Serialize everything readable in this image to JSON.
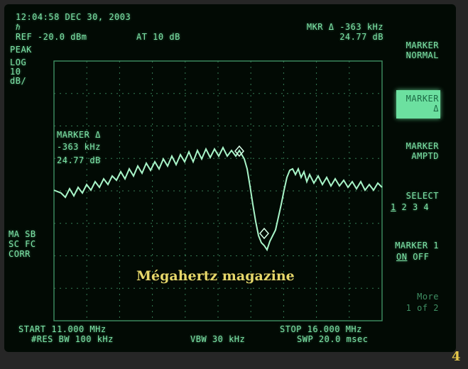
{
  "header": {
    "timestamp": "12:04:58 DEC 30, 2003",
    "ref_level": "REF -20.0 dBm",
    "attenuation": "AT 10 dB",
    "marker_readout_freq": "MKR Δ -363 kHz",
    "marker_readout_level": "24.77 dB"
  },
  "left_panel": {
    "detector": "PEAK",
    "scale_line1": "LOG",
    "scale_line2": "10",
    "scale_line3": "dB/",
    "status_line1": "MA SB",
    "status_line2": "SC FC",
    "status_line3": "CORR"
  },
  "marker_annotation": {
    "line1": "MARKER Δ",
    "line2": "-363 kHz",
    "line3": "24.77 dB"
  },
  "softkeys": {
    "marker_normal": [
      "MARKER",
      "NORMAL"
    ],
    "marker_delta": [
      "MARKER",
      "Δ"
    ],
    "marker_ampto": [
      "MARKER",
      "AMPTD"
    ],
    "select_label": "SELECT",
    "select_options": [
      "1",
      "2",
      "3",
      "4"
    ],
    "marker1_label": "MARKER 1",
    "marker1_on": "ON",
    "marker1_off": "OFF",
    "more_line1": "More",
    "more_line2": "1 of 2"
  },
  "footer": {
    "start": "START 11.000 MHz",
    "res_bw": "#RES BW 100 kHz",
    "vbw": "VBW 30 kHz",
    "stop": "STOP 16.000 MHz",
    "sweep": "SWP 20.0 msec"
  },
  "watermark": "Mégahertz magazine",
  "page_number": "4",
  "colors": {
    "phosphor": "#7ee6a8",
    "grid": "#3f8f63",
    "watermark": "#e6d76a"
  }
}
